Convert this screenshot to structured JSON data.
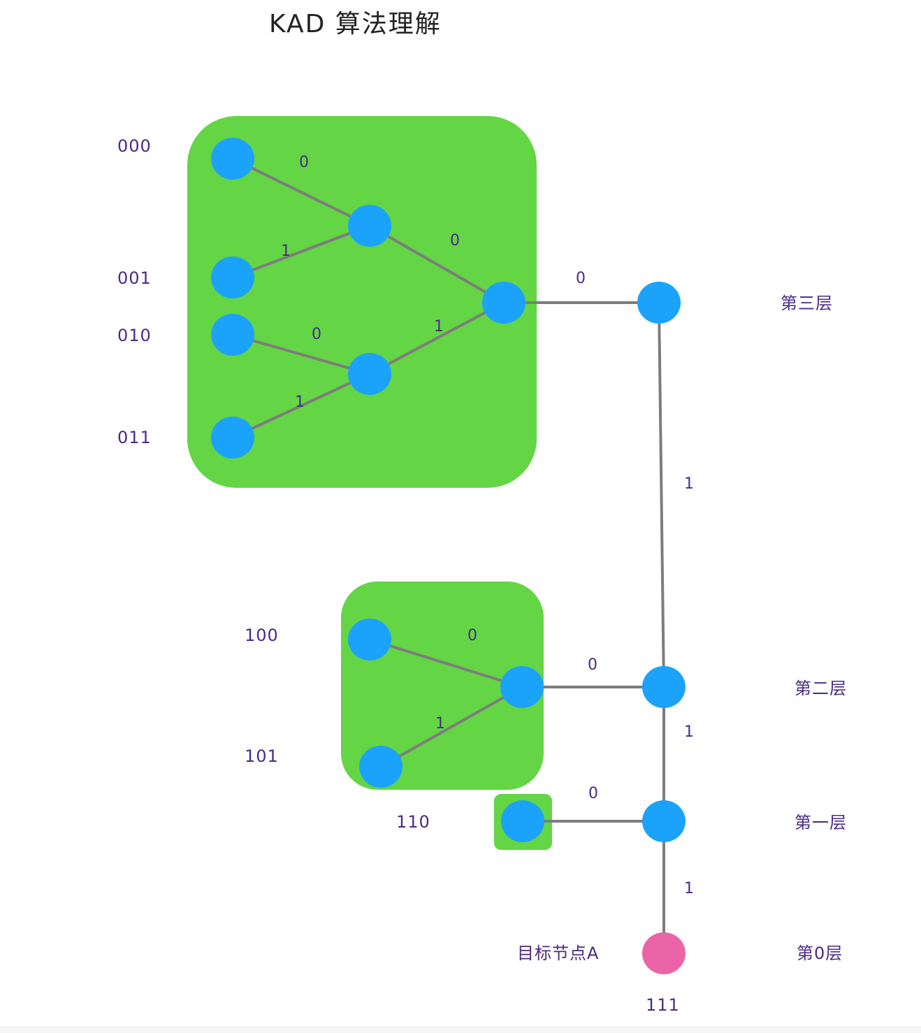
{
  "title": "KAD 算法理解",
  "groups": [
    {
      "id": "g0",
      "name": "subtree-0"
    },
    {
      "id": "g10",
      "name": "subtree-10"
    },
    {
      "id": "g110",
      "name": "subtree-110"
    }
  ],
  "nodes": [
    {
      "id": "n000",
      "kind": "leaf",
      "label": "000"
    },
    {
      "id": "n001",
      "kind": "leaf",
      "label": "001"
    },
    {
      "id": "n010",
      "kind": "leaf",
      "label": "010"
    },
    {
      "id": "n011",
      "kind": "leaf",
      "label": "011"
    },
    {
      "id": "n00",
      "kind": "internal"
    },
    {
      "id": "n01",
      "kind": "internal"
    },
    {
      "id": "n0",
      "kind": "internal"
    },
    {
      "id": "n100",
      "kind": "leaf",
      "label": "100"
    },
    {
      "id": "n101",
      "kind": "leaf",
      "label": "101"
    },
    {
      "id": "n10",
      "kind": "internal"
    },
    {
      "id": "n110",
      "kind": "leaf",
      "label": "110"
    },
    {
      "id": "r3",
      "kind": "spine",
      "layer": "第三层"
    },
    {
      "id": "r2",
      "kind": "spine",
      "layer": "第二层"
    },
    {
      "id": "r1",
      "kind": "spine",
      "layer": "第一层"
    },
    {
      "id": "target",
      "kind": "target",
      "label": "111",
      "name": "目标节点A",
      "layer": "第0层"
    }
  ],
  "edges": [
    {
      "from": "n000",
      "to": "n00",
      "bit": "0"
    },
    {
      "from": "n001",
      "to": "n00",
      "bit": "1"
    },
    {
      "from": "n010",
      "to": "n01",
      "bit": "0"
    },
    {
      "from": "n011",
      "to": "n01",
      "bit": "1"
    },
    {
      "from": "n00",
      "to": "n0",
      "bit": "0"
    },
    {
      "from": "n01",
      "to": "n0",
      "bit": "1"
    },
    {
      "from": "n0",
      "to": "r3",
      "bit": "0"
    },
    {
      "from": "r3",
      "to": "r2",
      "bit": "1"
    },
    {
      "from": "n100",
      "to": "n10",
      "bit": "0"
    },
    {
      "from": "n101",
      "to": "n10",
      "bit": "1"
    },
    {
      "from": "n10",
      "to": "r2",
      "bit": "0"
    },
    {
      "from": "r2",
      "to": "r1",
      "bit": "1"
    },
    {
      "from": "n110",
      "to": "r1",
      "bit": "0"
    },
    {
      "from": "r1",
      "to": "target",
      "bit": "1"
    }
  ],
  "colors": {
    "group_fill": "#64d545",
    "node_fill": "#1ba3fb",
    "target_fill": "#ec64a8",
    "edge": "#7d7d7d",
    "label": "#4b2a86"
  }
}
